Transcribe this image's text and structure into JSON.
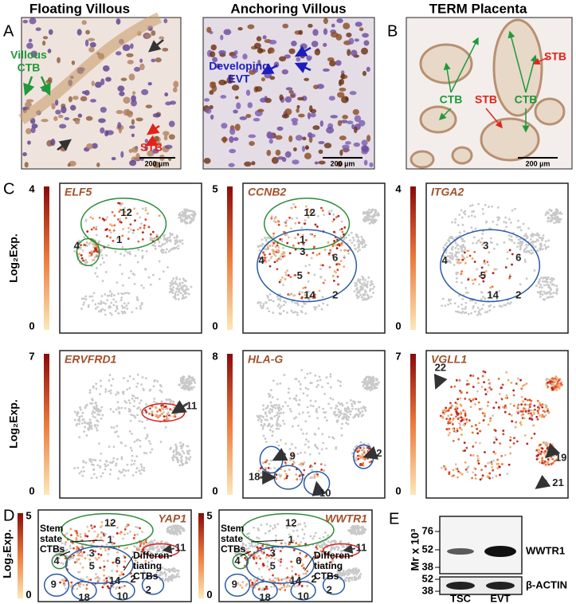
{
  "panels": {
    "A": {
      "letter": "A",
      "images": [
        {
          "title": "Floating Villous",
          "labels": [
            [
              "Villous",
              "CTB"
            ],
            "STB"
          ],
          "scale_bar": "200 µm"
        },
        {
          "title": "Anchoring Villous",
          "labels": [
            [
              "Developing",
              "EVT"
            ]
          ],
          "scale_bar": "200 µm"
        }
      ]
    },
    "B": {
      "letter": "B",
      "title": "TERM Placenta",
      "labels": [
        "STB",
        "CTB",
        "STB",
        "CTB"
      ],
      "scale_bar": "200 µm"
    },
    "C": {
      "letter": "C",
      "axis_label": "Log₂Exp.",
      "plots": [
        {
          "gene": "ELF5",
          "max": "4",
          "min": "0",
          "clusters": [
            "12",
            "1",
            "4"
          ]
        },
        {
          "gene": "CCNB2",
          "max": "5",
          "min": "0",
          "clusters": [
            "12",
            "1",
            "4",
            "3",
            "6",
            "5",
            "14",
            "2"
          ]
        },
        {
          "gene": "ITGA2",
          "max": "4",
          "min": "0",
          "clusters": [
            "3",
            "4",
            "6",
            "5",
            "14",
            "2"
          ]
        },
        {
          "gene": "ERVFRD1",
          "max": "7",
          "min": "0",
          "clusters": [
            "11"
          ]
        },
        {
          "gene": "HLA-G",
          "max": "8",
          "min": "0",
          "clusters": [
            "9",
            "2",
            "18",
            "10"
          ]
        },
        {
          "gene": "VGLL1",
          "max": "7",
          "min": "0",
          "clusters": [
            "22",
            "19",
            "21"
          ]
        }
      ]
    },
    "D": {
      "letter": "D",
      "axis_label": "Log₂Exp.",
      "stem_label": [
        "Stem",
        "state",
        "CTBs"
      ],
      "diff_label": [
        "Differen-",
        "tiating",
        "CTBs"
      ],
      "plots": [
        {
          "gene": "YAP1",
          "max": "5",
          "min": "0",
          "clusters": [
            "12",
            "1",
            "4",
            "3",
            "5",
            "6",
            "14",
            "2",
            "11",
            "9",
            "18",
            "10",
            "2"
          ]
        },
        {
          "gene": "WWTR1",
          "max": "5",
          "min": "0",
          "clusters": [
            "12",
            "1",
            "4",
            "3",
            "5",
            "6",
            "14",
            "2",
            "11",
            "9",
            "18",
            "10",
            "2"
          ]
        }
      ]
    },
    "E": {
      "letter": "E",
      "axis_label": "Mr x 10³",
      "markers_top": [
        "76",
        "52",
        "38"
      ],
      "markers_bottom": [
        "52",
        "38"
      ],
      "bands": [
        "WWTR1",
        "β-ACTIN"
      ],
      "lanes": [
        "TSC",
        "EVT"
      ]
    }
  }
}
